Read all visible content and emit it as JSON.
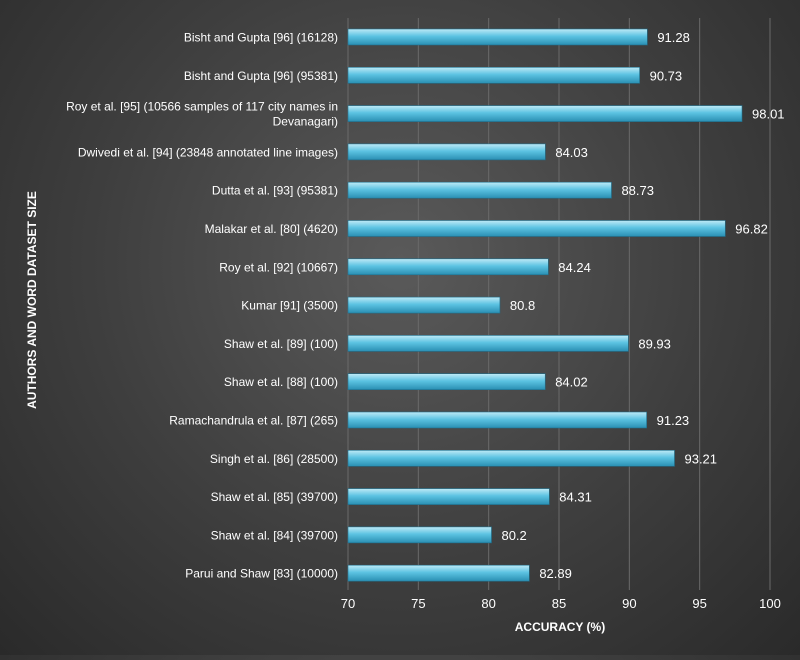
{
  "chart_data": {
    "type": "bar",
    "orientation": "horizontal",
    "categories": [
      "Bisht and Gupta [96] (16128)",
      "Bisht and Gupta [96] (95381)",
      "Roy et al. [95] (10566 samples of 117 city names in Devanagari)",
      "Dwivedi et al. [94] (23848 annotated line images)",
      "Dutta et al. [93] (95381)",
      "Malakar  et al. [80] (4620)",
      "Roy et al. [92] (10667)",
      "Kumar [91] (3500)",
      "Shaw et al. [89] (100)",
      "Shaw et al. [88] (100)",
      "Ramachandrula et al. [87] (265)",
      "Singh et al. [86] (28500)",
      "Shaw et al. [85] (39700)",
      "Shaw et al. [84] (39700)",
      "Parui and Shaw [83] (10000)"
    ],
    "category_lines": [
      [
        "Bisht and Gupta [96] (16128)"
      ],
      [
        "Bisht and Gupta [96] (95381)"
      ],
      [
        "Roy et al. [95] (10566 samples of 117 city names in",
        "Devanagari)"
      ],
      [
        "Dwivedi et al. [94] (23848 annotated line images)"
      ],
      [
        "Dutta et al. [93] (95381)"
      ],
      [
        "Malakar  et al. [80] (4620)"
      ],
      [
        "Roy et al. [92] (10667)"
      ],
      [
        "Kumar [91] (3500)"
      ],
      [
        "Shaw et al. [89] (100)"
      ],
      [
        "Shaw et al. [88] (100)"
      ],
      [
        "Ramachandrula et al. [87] (265)"
      ],
      [
        "Singh et al. [86] (28500)"
      ],
      [
        "Shaw et al. [85] (39700)"
      ],
      [
        "Shaw et al. [84] (39700)"
      ],
      [
        "Parui and Shaw [83] (10000)"
      ]
    ],
    "values": [
      91.28,
      90.73,
      98.01,
      84.03,
      88.73,
      96.82,
      84.24,
      80.8,
      89.93,
      84.02,
      91.23,
      93.21,
      84.31,
      80.2,
      82.89
    ],
    "value_labels": [
      "91.28",
      "90.73",
      "98.01",
      "84.03",
      "88.73",
      "96.82",
      "84.24",
      "80.8",
      "89.93",
      "84.02",
      "91.23",
      "93.21",
      "84.31",
      "80.2",
      "82.89"
    ],
    "xlim": [
      70,
      100
    ],
    "xticks": [
      70,
      75,
      80,
      85,
      90,
      95,
      100
    ],
    "xlabel": "ACCURACY (%)",
    "ylabel": "AUTHORS AND WORD DATASET SIZE",
    "grid": true,
    "colors": {
      "bar_light": "#bfeaf6",
      "bar_mid": "#5cc3e2",
      "bar_dark": "#2a8fb3",
      "text": "#ffffff",
      "grid": "#6a6a6a"
    }
  }
}
